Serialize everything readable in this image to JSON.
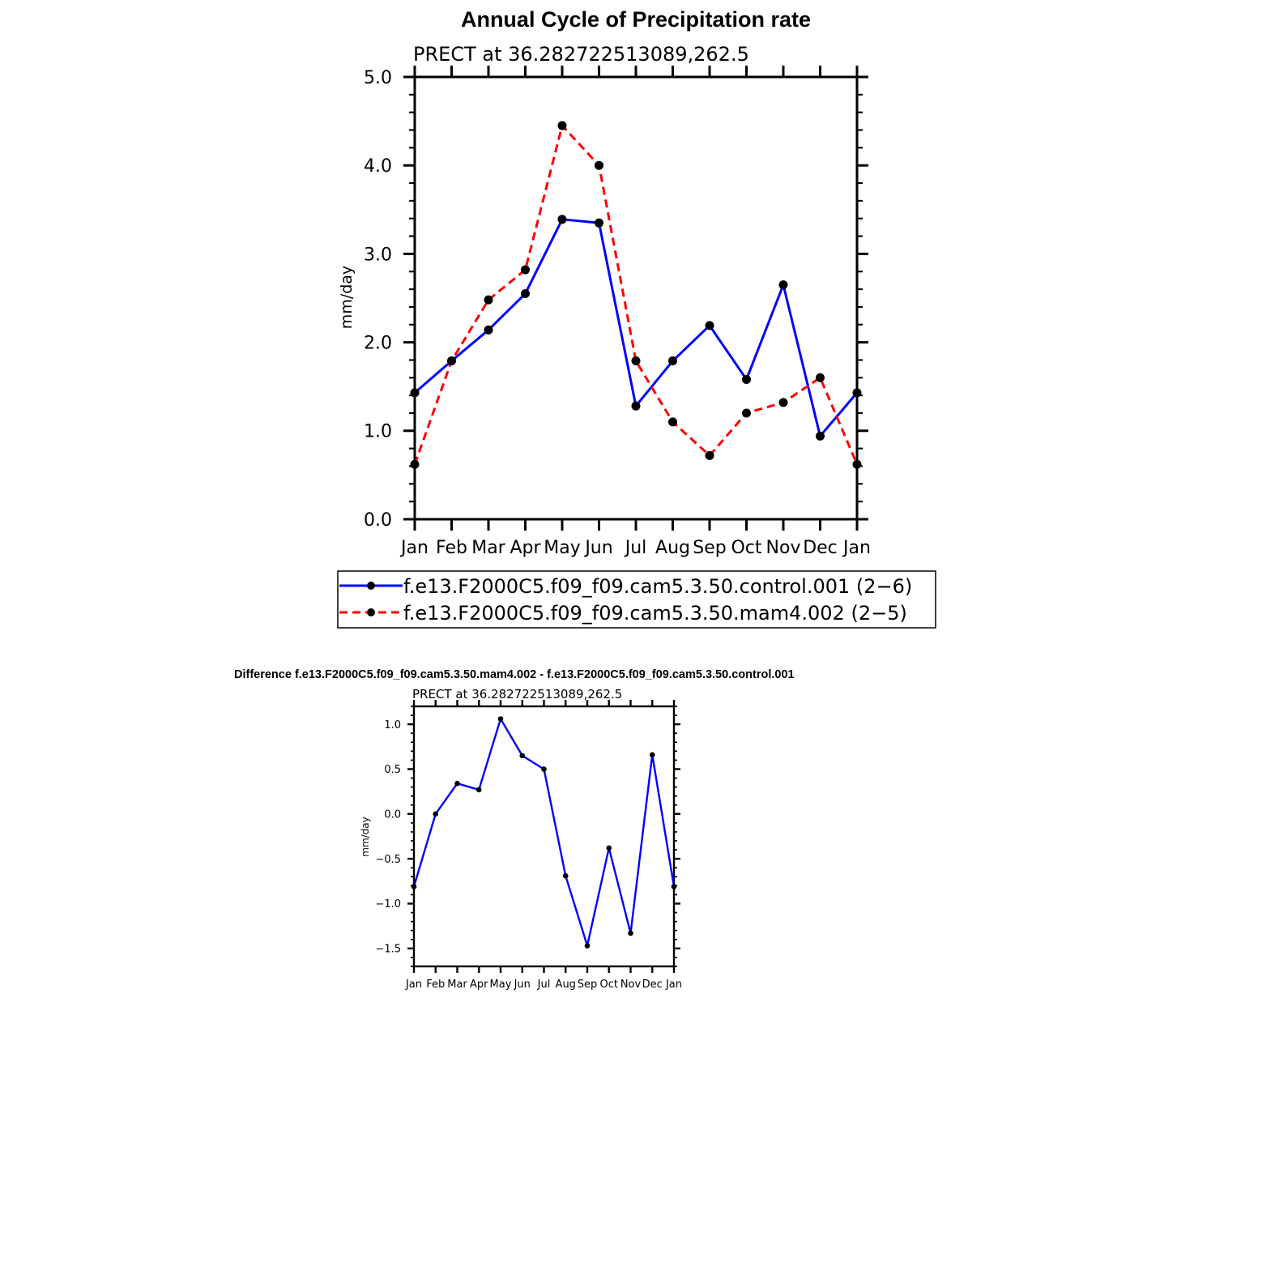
{
  "chart_data": [
    {
      "type": "line",
      "title": "Annual Cycle of Precipitation rate",
      "subtitle": "PRECT at 36.282722513089,262.5",
      "xlabel": "",
      "ylabel": "mm/day",
      "ylim": [
        0.0,
        5.0
      ],
      "yticks": [
        "0.0",
        "1.0",
        "2.0",
        "3.0",
        "4.0",
        "5.0"
      ],
      "categories": [
        "Jan",
        "Feb",
        "Mar",
        "Apr",
        "May",
        "Jun",
        "Jul",
        "Aug",
        "Sep",
        "Oct",
        "Nov",
        "Dec",
        "Jan"
      ],
      "grid": false,
      "legend_position": "bottom",
      "series": [
        {
          "name": "f.e13.F2000C5.f09_f09.cam5.3.50.control.001 (2−6)",
          "color": "#0000ff",
          "dash": "solid",
          "values": [
            1.43,
            1.79,
            2.14,
            2.55,
            3.39,
            3.35,
            1.28,
            1.79,
            2.19,
            1.58,
            2.65,
            0.94,
            1.43
          ]
        },
        {
          "name": "f.e13.F2000C5.f09_f09.cam5.3.50.mam4.002 (2−5)",
          "color": "#ff0000",
          "dash": "dashed",
          "values": [
            0.62,
            1.79,
            2.48,
            2.82,
            4.45,
            4.0,
            1.79,
            1.1,
            0.72,
            1.2,
            1.32,
            1.6,
            0.62
          ]
        }
      ]
    },
    {
      "type": "line",
      "title": "Difference f.e13.F2000C5.f09_f09.cam5.3.50.mam4.002 - f.e13.F2000C5.f09_f09.cam5.3.50.control.001",
      "subtitle": "PRECT at 36.282722513089,262.5",
      "xlabel": "",
      "ylabel": "mm/day",
      "ylim": [
        -1.7,
        1.2
      ],
      "yticks": [
        "−1.5",
        "−1.0",
        "−0.5",
        "0.0",
        "0.5",
        "1.0"
      ],
      "categories": [
        "Jan",
        "Feb",
        "Mar",
        "Apr",
        "May",
        "Jun",
        "Jul",
        "Aug",
        "Sep",
        "Oct",
        "Nov",
        "Dec",
        "Jan"
      ],
      "grid": false,
      "series": [
        {
          "color": "#0000ff",
          "dash": "solid",
          "values": [
            -0.81,
            0.0,
            0.34,
            0.27,
            1.06,
            0.65,
            0.5,
            -0.69,
            -1.47,
            -0.38,
            -1.33,
            0.66,
            -0.81
          ]
        }
      ]
    }
  ]
}
